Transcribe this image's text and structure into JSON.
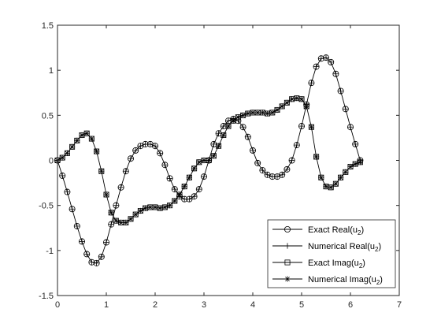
{
  "chart_data": {
    "type": "line",
    "title": "",
    "xlabel": "",
    "ylabel": "",
    "xlim": [
      0,
      7
    ],
    "ylim": [
      -1.5,
      1.5
    ],
    "xticks": [
      0,
      1,
      2,
      3,
      4,
      5,
      6,
      7
    ],
    "yticks": [
      -1.5,
      -1,
      -0.5,
      0,
      0.5,
      1,
      1.5
    ],
    "xtick_labels": [
      "0",
      "1",
      "2",
      "3",
      "4",
      "5",
      "6",
      "7"
    ],
    "ytick_labels": [
      "-1.5",
      "-1",
      "-0.5",
      "0",
      "0.5",
      "1",
      "1.5"
    ],
    "grid": false,
    "legend_position": "bottom-right",
    "line_color": "#000000",
    "series_curves": [
      {
        "name": "Real(u_2)",
        "x": [
          0.0,
          0.1,
          0.2,
          0.3,
          0.4,
          0.5,
          0.6,
          0.7,
          0.8,
          0.9,
          1.0,
          1.1,
          1.2,
          1.3,
          1.4,
          1.5,
          1.6,
          1.7,
          1.8,
          1.9,
          2.0,
          2.1,
          2.2,
          2.3,
          2.4,
          2.5,
          2.6,
          2.7,
          2.8,
          2.9,
          3.0,
          3.1,
          3.2,
          3.3,
          3.4,
          3.5,
          3.6,
          3.7,
          3.8,
          3.9,
          4.0,
          4.1,
          4.2,
          4.3,
          4.4,
          4.5,
          4.6,
          4.7,
          4.8,
          4.9,
          5.0,
          5.1,
          5.2,
          5.3,
          5.4,
          5.5,
          5.6,
          5.7,
          5.8,
          5.9,
          6.0,
          6.1,
          6.2
        ],
        "y": [
          0.0,
          -0.17,
          -0.35,
          -0.54,
          -0.73,
          -0.9,
          -1.04,
          -1.13,
          -1.14,
          -1.07,
          -0.91,
          -0.71,
          -0.5,
          -0.3,
          -0.12,
          0.02,
          0.11,
          0.16,
          0.18,
          0.18,
          0.16,
          0.08,
          -0.05,
          -0.2,
          -0.32,
          -0.4,
          -0.43,
          -0.43,
          -0.4,
          -0.32,
          -0.18,
          0.0,
          0.18,
          0.3,
          0.38,
          0.44,
          0.46,
          0.44,
          0.37,
          0.26,
          0.11,
          -0.03,
          -0.11,
          -0.16,
          -0.18,
          -0.18,
          -0.16,
          -0.1,
          0.0,
          0.17,
          0.38,
          0.62,
          0.86,
          1.04,
          1.13,
          1.14,
          1.09,
          0.96,
          0.77,
          0.57,
          0.37,
          0.18,
          0.0
        ]
      },
      {
        "name": "Imag(u_2)",
        "x": [
          0.0,
          0.1,
          0.2,
          0.3,
          0.4,
          0.5,
          0.6,
          0.7,
          0.8,
          0.9,
          1.0,
          1.1,
          1.2,
          1.3,
          1.4,
          1.5,
          1.6,
          1.7,
          1.8,
          1.9,
          2.0,
          2.1,
          2.2,
          2.3,
          2.4,
          2.5,
          2.6,
          2.7,
          2.8,
          2.9,
          3.0,
          3.1,
          3.2,
          3.3,
          3.4,
          3.5,
          3.6,
          3.7,
          3.8,
          3.9,
          4.0,
          4.1,
          4.2,
          4.3,
          4.4,
          4.5,
          4.6,
          4.7,
          4.8,
          4.9,
          5.0,
          5.1,
          5.2,
          5.3,
          5.4,
          5.5,
          5.6,
          5.7,
          5.8,
          5.9,
          6.0,
          6.1,
          6.2
        ],
        "y": [
          0.0,
          0.03,
          0.08,
          0.15,
          0.22,
          0.28,
          0.3,
          0.24,
          0.1,
          -0.12,
          -0.38,
          -0.58,
          -0.67,
          -0.69,
          -0.69,
          -0.65,
          -0.6,
          -0.56,
          -0.53,
          -0.52,
          -0.52,
          -0.53,
          -0.52,
          -0.5,
          -0.45,
          -0.38,
          -0.29,
          -0.19,
          -0.09,
          -0.02,
          0.0,
          0.0,
          0.05,
          0.16,
          0.28,
          0.38,
          0.44,
          0.48,
          0.5,
          0.52,
          0.53,
          0.53,
          0.53,
          0.52,
          0.53,
          0.56,
          0.6,
          0.64,
          0.68,
          0.69,
          0.68,
          0.6,
          0.37,
          0.04,
          -0.19,
          -0.29,
          -0.3,
          -0.26,
          -0.19,
          -0.13,
          -0.07,
          -0.04,
          -0.02
        ]
      }
    ],
    "legend": [
      {
        "label_main": "Exact Real(u",
        "label_sub": "2",
        "label_end": ")",
        "marker": "circle"
      },
      {
        "label_main": "Numerical Real(u",
        "label_sub": "2",
        "label_end": ")",
        "marker": "plus"
      },
      {
        "label_main": "Exact Imag(u",
        "label_sub": "2",
        "label_end": ")",
        "marker": "square"
      },
      {
        "label_main": "Numerical Imag(u",
        "label_sub": "2",
        "label_end": ")",
        "marker": "asterisk"
      }
    ]
  }
}
